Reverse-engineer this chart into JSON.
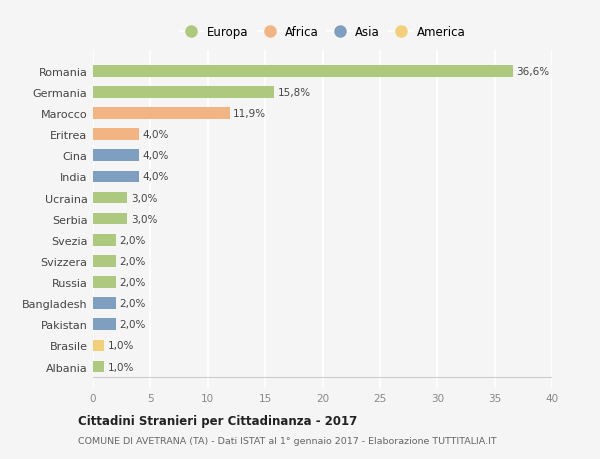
{
  "categories": [
    "Romania",
    "Germania",
    "Marocco",
    "Eritrea",
    "Cina",
    "India",
    "Ucraina",
    "Serbia",
    "Svezia",
    "Svizzera",
    "Russia",
    "Bangladesh",
    "Pakistan",
    "Brasile",
    "Albania"
  ],
  "values": [
    36.6,
    15.8,
    11.9,
    4.0,
    4.0,
    4.0,
    3.0,
    3.0,
    2.0,
    2.0,
    2.0,
    2.0,
    2.0,
    1.0,
    1.0
  ],
  "labels": [
    "36,6%",
    "15,8%",
    "11,9%",
    "4,0%",
    "4,0%",
    "4,0%",
    "3,0%",
    "3,0%",
    "2,0%",
    "2,0%",
    "2,0%",
    "2,0%",
    "2,0%",
    "1,0%",
    "1,0%"
  ],
  "continents": [
    "Europa",
    "Europa",
    "Africa",
    "Africa",
    "Asia",
    "Asia",
    "Europa",
    "Europa",
    "Europa",
    "Europa",
    "Europa",
    "Asia",
    "Asia",
    "America",
    "Europa"
  ],
  "continent_colors": {
    "Europa": "#adc97e",
    "Africa": "#f2b482",
    "Asia": "#7f9fc0",
    "America": "#f2d07a"
  },
  "legend_order": [
    "Europa",
    "Africa",
    "Asia",
    "America"
  ],
  "xlim": [
    0,
    40
  ],
  "xticks": [
    0,
    5,
    10,
    15,
    20,
    25,
    30,
    35,
    40
  ],
  "title": "Cittadini Stranieri per Cittadinanza - 2017",
  "subtitle": "COMUNE DI AVETRANA (TA) - Dati ISTAT al 1° gennaio 2017 - Elaborazione TUTTITALIA.IT",
  "background_color": "#f5f5f5",
  "grid_color": "#ffffff",
  "bar_height": 0.55
}
